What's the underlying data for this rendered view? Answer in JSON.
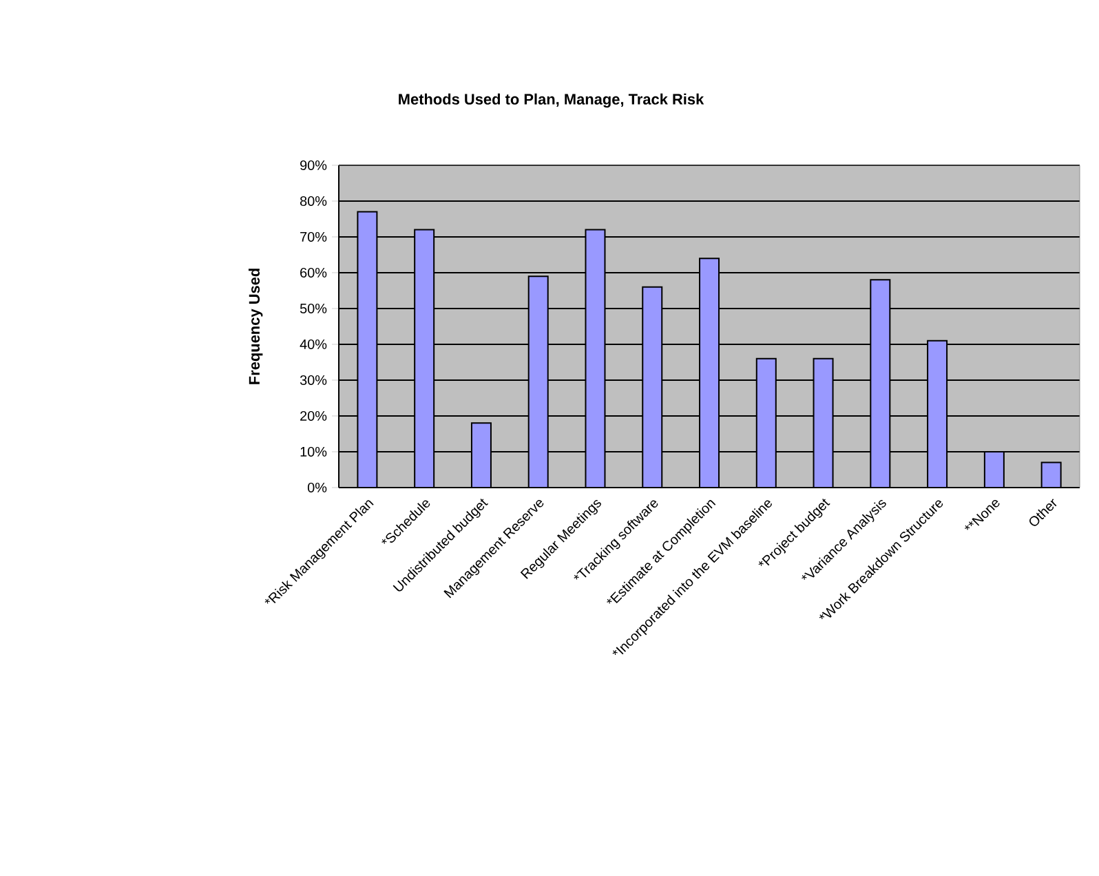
{
  "chart_data": {
    "type": "bar",
    "title": "Methods Used to Plan, Manage, Track Risk",
    "ylabel": "Frequency Used",
    "categories": [
      "*Risk Management Plan",
      "*Schedule",
      "Undistributed budget",
      "Management Reserve",
      "Regular Meetings",
      "*Tracking software",
      "*Estimate at Completion",
      "*Incorporated into the EVM baseline",
      "*Project budget",
      "*Variance Analysis",
      "*Work Breakdown Structure",
      "**None",
      "Other"
    ],
    "values": [
      77,
      72,
      18,
      59,
      72,
      56,
      64,
      36,
      36,
      58,
      41,
      10,
      7
    ],
    "color": "#9999ff",
    "ylim": [
      0,
      90
    ],
    "yticks": [
      {
        "value": 0,
        "label": "0%"
      },
      {
        "value": 10,
        "label": "10%"
      },
      {
        "value": 20,
        "label": "20%"
      },
      {
        "value": 30,
        "label": "30%"
      },
      {
        "value": 40,
        "label": "40%"
      },
      {
        "value": 50,
        "label": "50%"
      },
      {
        "value": 60,
        "label": "60%"
      },
      {
        "value": 70,
        "label": "70%"
      },
      {
        "value": 80,
        "label": "80%"
      },
      {
        "value": 90,
        "label": "90%"
      }
    ],
    "grid": "y"
  }
}
